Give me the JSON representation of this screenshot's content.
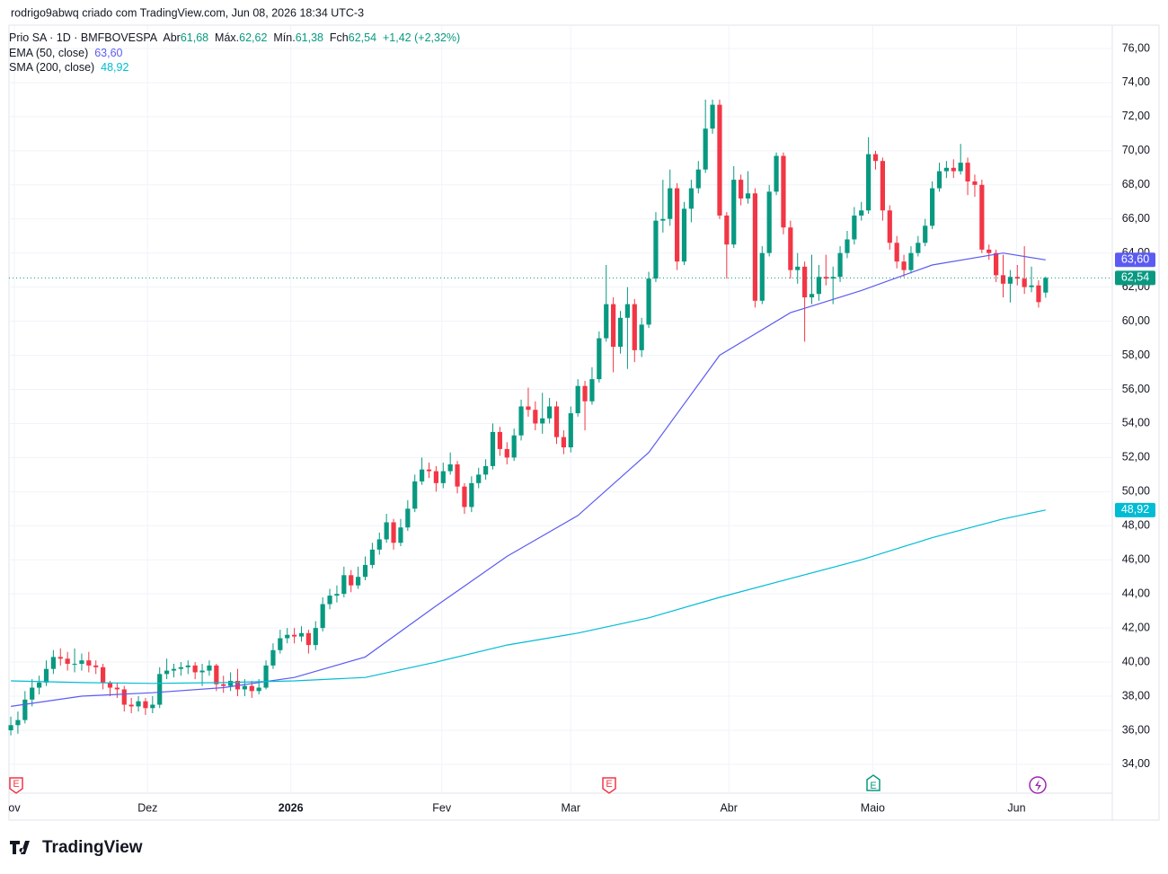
{
  "credit": "rodrigo9abwq criado com TradingView.com, Jun 08, 2026 18:34 UTC-3",
  "brand": "TradingView",
  "events": [
    {
      "label": "E"
    },
    {
      "label": "E"
    },
    {
      "label": "E"
    }
  ],
  "chart_data": {
    "type": "candlestick",
    "title": "Prio SA · 1D · BMFBOVESPA",
    "ohlc_names": {
      "open": "Abr",
      "high": "Máx.",
      "low": "Mín.",
      "close": "Fch"
    },
    "ohlc_labels": {
      "open": "61,68",
      "high": "62,62",
      "low": "61,38",
      "close": "62,54"
    },
    "change_label": "+1,42 (+2,32%)",
    "up_color": "#089981",
    "down_color": "#f23645",
    "opens": [
      36.0,
      36.3,
      36.6,
      37.8,
      38.5,
      38.8,
      39.6,
      40.3,
      40.2,
      39.9,
      39.9,
      40.1,
      39.8,
      39.7,
      38.8,
      38.5,
      38.4,
      37.5,
      37.4,
      37.7,
      37.3,
      37.5,
      39.3,
      39.5,
      39.6,
      39.7,
      39.8,
      39.4,
      39.5,
      39.8,
      38.7,
      38.6,
      38.9,
      38.4,
      38.6,
      38.3,
      38.5,
      39.8,
      40.7,
      41.4,
      41.6,
      41.5,
      41.7,
      41.0,
      42.0,
      43.4,
      43.9,
      44.0,
      45.1,
      44.5,
      45.0,
      45.7,
      46.6,
      47.2,
      48.2,
      47.0,
      47.9,
      49.0,
      50.6,
      51.3,
      51.2,
      50.5,
      51.2,
      51.6,
      50.3,
      49.1,
      50.5,
      51.0,
      51.5,
      53.5,
      52.5,
      52.0,
      53.3,
      55.0,
      54.8,
      54.0,
      54.3,
      55.0,
      53.2,
      52.6,
      54.6,
      56.2,
      55.3,
      56.6,
      59.0,
      61.0,
      58.5,
      60.2,
      61.0,
      58.3,
      59.8,
      62.5,
      65.9,
      66.0,
      67.8,
      63.5,
      66.6,
      67.8,
      68.9,
      71.3,
      72.7,
      66.2,
      64.5,
      68.3,
      67.2,
      67.5,
      61.2,
      64.0,
      67.6,
      69.7,
      65.5,
      63.0,
      63.2,
      61.4,
      61.6,
      62.6,
      62.5,
      62.6,
      64.0,
      64.8,
      66.2,
      66.5,
      69.8,
      69.4,
      66.5,
      64.6,
      63.5,
      63.0,
      64.0,
      64.6,
      65.6,
      67.8,
      68.8,
      69.0,
      68.8,
      69.3,
      68.2,
      68.0,
      64.2,
      64.0,
      62.7,
      62.2,
      62.6,
      62.5,
      62.0,
      62.1,
      61.68
    ],
    "highs": [
      36.8,
      37.1,
      38.3,
      39.0,
      39.2,
      40.1,
      40.7,
      40.8,
      40.6,
      40.8,
      40.5,
      40.6,
      40.1,
      39.9,
      38.9,
      38.8,
      38.6,
      37.9,
      38.0,
      37.9,
      38.0,
      39.7,
      40.2,
      39.9,
      40.0,
      40.1,
      40.0,
      39.9,
      40.1,
      39.9,
      39.2,
      39.4,
      39.6,
      39.0,
      38.9,
      39.0,
      40.1,
      41.1,
      41.9,
      42.0,
      42.0,
      42.1,
      41.9,
      42.4,
      43.8,
      44.3,
      44.5,
      45.6,
      45.4,
      45.6,
      46.2,
      47.0,
      47.6,
      48.7,
      48.4,
      48.4,
      49.5,
      51.0,
      52.0,
      51.7,
      51.5,
      51.7,
      52.3,
      51.8,
      50.5,
      50.9,
      51.4,
      51.9,
      54.0,
      53.8,
      52.9,
      53.7,
      55.4,
      56.1,
      55.3,
      55.8,
      55.5,
      55.3,
      53.6,
      55.0,
      56.6,
      56.5,
      57.3,
      59.4,
      63.3,
      61.4,
      60.6,
      62.0,
      61.3,
      60.2,
      62.9,
      66.4,
      68.3,
      68.9,
      68.1,
      67.0,
      68.3,
      69.4,
      73.0,
      73.0,
      73.0,
      66.4,
      69.1,
      68.6,
      68.8,
      67.8,
      64.4,
      68.0,
      69.9,
      69.9,
      65.9,
      64.0,
      63.5,
      63.9,
      63.3,
      63.9,
      63.2,
      64.4,
      65.3,
      66.7,
      67.0,
      70.8,
      70.0,
      69.6,
      66.8,
      65.0,
      63.9,
      64.4,
      65.0,
      66.0,
      68.2,
      69.3,
      69.4,
      69.5,
      70.4,
      69.6,
      68.6,
      68.3,
      64.5,
      64.2,
      63.9,
      63.0,
      63.3,
      64.4,
      63.2,
      62.4,
      62.62
    ],
    "lows": [
      35.7,
      35.8,
      36.4,
      37.4,
      38.1,
      38.6,
      39.3,
      39.8,
      39.5,
      39.4,
      39.5,
      39.4,
      39.3,
      38.4,
      38.0,
      37.9,
      37.1,
      37.0,
      37.1,
      36.9,
      37.0,
      37.3,
      39.0,
      39.1,
      39.2,
      39.3,
      39.0,
      38.6,
      39.2,
      38.3,
      38.2,
      38.3,
      38.0,
      38.0,
      37.9,
      38.1,
      38.4,
      39.6,
      40.5,
      41.1,
      41.1,
      41.2,
      40.5,
      40.7,
      41.8,
      43.1,
      43.5,
      43.8,
      44.1,
      44.3,
      44.8,
      45.5,
      46.3,
      47.0,
      46.6,
      46.8,
      47.7,
      48.8,
      50.4,
      50.8,
      50.0,
      50.2,
      51.0,
      49.9,
      48.7,
      48.8,
      50.2,
      50.7,
      51.3,
      52.1,
      51.6,
      51.8,
      53.0,
      54.4,
      53.6,
      53.4,
      54.0,
      52.8,
      52.2,
      52.3,
      54.4,
      53.6,
      55.1,
      56.4,
      58.8,
      57.0,
      58.1,
      57.2,
      57.6,
      57.9,
      59.6,
      62.3,
      65.2,
      65.6,
      63.0,
      63.3,
      65.8,
      67.5,
      68.7,
      71.0,
      66.0,
      62.5,
      64.3,
      66.8,
      66.9,
      60.8,
      61.0,
      63.8,
      67.4,
      65.1,
      62.5,
      62.2,
      58.8,
      61.0,
      61.2,
      62.1,
      61.0,
      62.3,
      63.7,
      64.5,
      65.9,
      66.3,
      68.9,
      65.9,
      64.2,
      63.1,
      62.6,
      62.8,
      63.8,
      64.4,
      65.4,
      67.6,
      68.4,
      68.4,
      68.6,
      67.4,
      67.3,
      64.0,
      63.6,
      62.3,
      61.4,
      61.1,
      62.1,
      61.6,
      61.7,
      60.8,
      61.38
    ],
    "closes": [
      36.3,
      36.6,
      37.8,
      38.5,
      38.8,
      39.6,
      40.3,
      40.2,
      39.9,
      39.9,
      40.1,
      39.8,
      39.7,
      38.8,
      38.5,
      38.4,
      37.5,
      37.4,
      37.7,
      37.3,
      37.5,
      39.3,
      39.5,
      39.6,
      39.7,
      39.8,
      39.4,
      39.5,
      39.8,
      38.7,
      38.6,
      38.9,
      38.4,
      38.6,
      38.3,
      38.5,
      39.8,
      40.7,
      41.4,
      41.6,
      41.5,
      41.7,
      41.0,
      42.0,
      43.4,
      43.9,
      44.0,
      45.1,
      44.5,
      45.0,
      45.7,
      46.6,
      47.2,
      48.2,
      47.0,
      47.9,
      49.0,
      50.6,
      51.3,
      51.2,
      50.5,
      51.2,
      51.6,
      50.3,
      49.1,
      50.5,
      51.0,
      51.5,
      53.5,
      52.5,
      52.0,
      53.3,
      55.0,
      54.8,
      54.0,
      54.3,
      55.0,
      53.2,
      52.6,
      54.6,
      56.2,
      55.3,
      56.6,
      59.0,
      61.0,
      58.5,
      60.2,
      61.0,
      58.3,
      59.8,
      62.5,
      65.9,
      66.0,
      67.8,
      63.5,
      66.6,
      67.8,
      68.9,
      71.3,
      72.7,
      66.2,
      64.5,
      68.3,
      67.2,
      67.5,
      61.2,
      64.0,
      67.6,
      69.7,
      65.5,
      63.0,
      63.2,
      61.4,
      61.6,
      62.6,
      62.5,
      62.6,
      64.0,
      64.8,
      66.2,
      66.5,
      69.8,
      69.4,
      66.5,
      64.6,
      63.5,
      63.0,
      64.0,
      64.6,
      65.6,
      67.8,
      68.8,
      69.0,
      68.8,
      69.3,
      68.2,
      68.0,
      64.2,
      64.0,
      62.7,
      62.2,
      62.6,
      62.5,
      62.0,
      62.1,
      61.12,
      62.54
    ],
    "series": [
      {
        "name": "EMA (50, close)",
        "color": "#5b5bf2",
        "last_label": "63,60",
        "x": [
          0,
          10,
          20,
          30,
          40,
          50,
          60,
          70,
          80,
          90,
          100,
          110,
          120,
          130,
          140,
          146
        ],
        "values": [
          37.4,
          38.0,
          38.2,
          38.5,
          39.1,
          40.3,
          43.3,
          46.2,
          48.6,
          52.3,
          58.0,
          60.5,
          61.8,
          63.3,
          64.0,
          63.6
        ]
      },
      {
        "name": "SMA (200, close)",
        "color": "#00bcd4",
        "last_label": "48,92",
        "x": [
          0,
          10,
          20,
          30,
          40,
          50,
          60,
          70,
          80,
          90,
          100,
          110,
          120,
          130,
          140,
          146
        ],
        "values": [
          38.9,
          38.8,
          38.75,
          38.8,
          38.9,
          39.1,
          40.0,
          41.0,
          41.7,
          42.6,
          43.8,
          44.9,
          46.0,
          47.3,
          48.4,
          48.92
        ]
      }
    ],
    "xlim": [
      -0.26,
      155.4
    ],
    "xticks": [
      {
        "value": 0.5,
        "label": "ov"
      },
      {
        "value": 19.3,
        "label": "Dez"
      },
      {
        "value": 39.5,
        "label": "2026"
      },
      {
        "value": 60.8,
        "label": "Fev"
      },
      {
        "value": 79,
        "label": "Mar"
      },
      {
        "value": 101.3,
        "label": "Abr"
      },
      {
        "value": 121.6,
        "label": "Maio"
      },
      {
        "value": 141.9,
        "label": "Jun"
      }
    ],
    "ylim": [
      32.31,
      77.37
    ],
    "yticks": [
      {
        "value": 34,
        "label": "34,00"
      },
      {
        "value": 36,
        "label": "36,00"
      },
      {
        "value": 38,
        "label": "38,00"
      },
      {
        "value": 40,
        "label": "40,00"
      },
      {
        "value": 42,
        "label": "42,00"
      },
      {
        "value": 44,
        "label": "44,00"
      },
      {
        "value": 46,
        "label": "46,00"
      },
      {
        "value": 48,
        "label": "48,00"
      },
      {
        "value": 50,
        "label": "50,00"
      },
      {
        "value": 52,
        "label": "52,00"
      },
      {
        "value": 54,
        "label": "54,00"
      },
      {
        "value": 56,
        "label": "56,00"
      },
      {
        "value": 58,
        "label": "58,00"
      },
      {
        "value": 60,
        "label": "60,00"
      },
      {
        "value": 62,
        "label": "62,00"
      },
      {
        "value": 64,
        "label": "64,00"
      },
      {
        "value": 66,
        "label": "66,00"
      },
      {
        "value": 68,
        "label": "68,00"
      },
      {
        "value": 70,
        "label": "70,00"
      },
      {
        "value": 72,
        "label": "72,00"
      },
      {
        "value": 74,
        "label": "74,00"
      },
      {
        "value": 76,
        "label": "76,00"
      }
    ],
    "grid": true
  }
}
